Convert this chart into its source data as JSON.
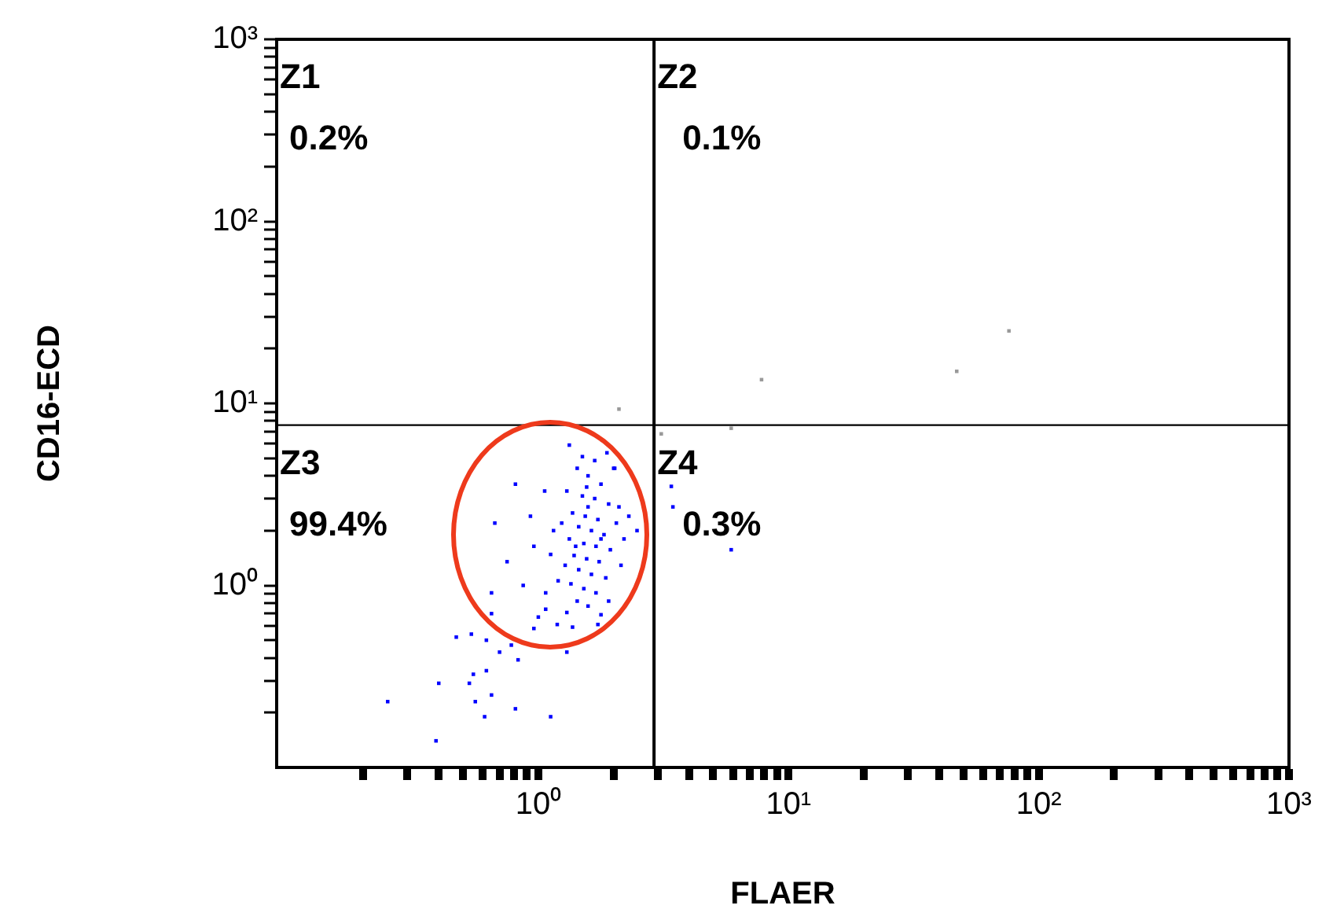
{
  "chart_data": {
    "type": "scatter",
    "xlabel": "FLAER",
    "ylabel": "CD16-ECD",
    "log": "xy",
    "marker": "square",
    "xlim": [
      0.09,
      1000
    ],
    "ylim": [
      0.1,
      1000
    ],
    "xticks": [
      {
        "value": 0.2,
        "label": null
      },
      {
        "value": 0.3,
        "label": null
      },
      {
        "value": 0.4,
        "label": null
      },
      {
        "value": 0.5,
        "label": null
      },
      {
        "value": 0.6,
        "label": null
      },
      {
        "value": 0.7,
        "label": null
      },
      {
        "value": 0.8,
        "label": null
      },
      {
        "value": 0.9,
        "label": null
      },
      {
        "value": 1,
        "label": "10⁰"
      },
      {
        "value": 2,
        "label": null
      },
      {
        "value": 3,
        "label": null
      },
      {
        "value": 4,
        "label": null
      },
      {
        "value": 5,
        "label": null
      },
      {
        "value": 6,
        "label": null
      },
      {
        "value": 7,
        "label": null
      },
      {
        "value": 8,
        "label": null
      },
      {
        "value": 9,
        "label": null
      },
      {
        "value": 10,
        "label": "10¹"
      },
      {
        "value": 20,
        "label": null
      },
      {
        "value": 30,
        "label": null
      },
      {
        "value": 40,
        "label": null
      },
      {
        "value": 50,
        "label": null
      },
      {
        "value": 60,
        "label": null
      },
      {
        "value": 70,
        "label": null
      },
      {
        "value": 80,
        "label": null
      },
      {
        "value": 90,
        "label": null
      },
      {
        "value": 100,
        "label": "10²"
      },
      {
        "value": 200,
        "label": null
      },
      {
        "value": 300,
        "label": null
      },
      {
        "value": 400,
        "label": null
      },
      {
        "value": 500,
        "label": null
      },
      {
        "value": 600,
        "label": null
      },
      {
        "value": 700,
        "label": null
      },
      {
        "value": 800,
        "label": null
      },
      {
        "value": 900,
        "label": null
      },
      {
        "value": 1000,
        "label": "10³"
      }
    ],
    "yticks": [
      {
        "value": 0.2,
        "label": null
      },
      {
        "value": 0.3,
        "label": null
      },
      {
        "value": 0.4,
        "label": null
      },
      {
        "value": 0.5,
        "label": null
      },
      {
        "value": 0.6,
        "label": null
      },
      {
        "value": 0.7,
        "label": null
      },
      {
        "value": 0.8,
        "label": null
      },
      {
        "value": 0.9,
        "label": null
      },
      {
        "value": 1,
        "label": "10⁰"
      },
      {
        "value": 2,
        "label": null
      },
      {
        "value": 3,
        "label": null
      },
      {
        "value": 4,
        "label": null
      },
      {
        "value": 5,
        "label": null
      },
      {
        "value": 6,
        "label": null
      },
      {
        "value": 7,
        "label": null
      },
      {
        "value": 8,
        "label": null
      },
      {
        "value": 9,
        "label": null
      },
      {
        "value": 10,
        "label": "10¹"
      },
      {
        "value": 20,
        "label": null
      },
      {
        "value": 30,
        "label": null
      },
      {
        "value": 40,
        "label": null
      },
      {
        "value": 50,
        "label": null
      },
      {
        "value": 60,
        "label": null
      },
      {
        "value": 70,
        "label": null
      },
      {
        "value": 80,
        "label": null
      },
      {
        "value": 90,
        "label": null
      },
      {
        "value": 100,
        "label": "10²"
      },
      {
        "value": 200,
        "label": null
      },
      {
        "value": 300,
        "label": null
      },
      {
        "value": 400,
        "label": null
      },
      {
        "value": 500,
        "label": null
      },
      {
        "value": 600,
        "label": null
      },
      {
        "value": 700,
        "label": null
      },
      {
        "value": 800,
        "label": null
      },
      {
        "value": 900,
        "label": null
      },
      {
        "value": 1000,
        "label": "10³"
      }
    ],
    "series": [
      {
        "color": "#0000ff",
        "x": [
          1.43,
          1.58,
          1.78,
          1.3,
          1.5,
          1.68,
          1.91,
          1.37,
          1.54,
          1.73,
          1.24,
          1.45,
          1.63,
          1.83,
          1.33,
          1.52,
          1.7,
          1.94,
          1.39,
          1.56,
          1.75,
          1.28,
          1.45,
          1.63,
          1.86,
          1.35,
          1.52,
          1.7,
          1.43,
          1.58,
          1.3,
          1.78,
          1.15,
          2.05,
          2.2,
          1.12,
          2.1,
          2.0,
          1.5,
          1.68,
          1.2,
          1.07,
          2.14,
          1.91,
          1.56,
          1.41,
          1.78,
          1.58,
          0.81,
          0.93,
          0.75,
          0.87,
          1.0,
          1.19,
          1.37,
          1.73,
          1.07,
          0.65,
          0.67,
          2.02,
          2.3,
          2.48,
          1.88,
          1.33,
          1.06,
          0.96,
          0.65,
          0.54,
          0.47,
          0.62,
          0.7,
          0.78,
          0.83,
          0.55,
          0.62,
          0.4,
          0.53,
          0.56,
          0.65,
          0.81,
          0.61,
          0.25,
          0.39,
          1.12,
          1.3,
          0.96,
          3.4,
          3.45,
          5.9
        ],
        "values": [
          4.4,
          4.0,
          3.6,
          3.3,
          3.1,
          3.0,
          2.8,
          2.5,
          2.4,
          2.3,
          2.2,
          2.1,
          2.0,
          1.9,
          1.8,
          1.7,
          1.64,
          1.57,
          1.46,
          1.4,
          1.35,
          1.29,
          1.22,
          1.15,
          1.1,
          1.02,
          0.96,
          0.91,
          0.82,
          0.77,
          0.71,
          0.69,
          2.0,
          2.2,
          1.8,
          1.48,
          2.7,
          4.4,
          5.1,
          4.85,
          1.06,
          0.91,
          1.29,
          0.82,
          3.47,
          1.64,
          1.8,
          2.7,
          3.6,
          2.4,
          1.35,
          1.0,
          0.67,
          0.61,
          0.59,
          0.61,
          0.74,
          0.91,
          2.2,
          4.4,
          2.4,
          2.0,
          5.35,
          5.9,
          3.3,
          1.64,
          0.7,
          0.54,
          0.52,
          0.5,
          0.43,
          0.47,
          0.39,
          0.325,
          0.34,
          0.29,
          0.29,
          0.23,
          0.25,
          0.21,
          0.19,
          0.23,
          0.14,
          0.19,
          0.43,
          0.58,
          3.5,
          2.7,
          1.57
        ]
      },
      {
        "color": "#999999",
        "x": [
          7.8,
          47,
          76,
          5.9,
          3.1,
          2.1
        ],
        "values": [
          13.5,
          15,
          25,
          7.3,
          6.8,
          9.3
        ]
      }
    ],
    "ref_lines": [
      {
        "axis": "x",
        "value": 2.9,
        "color": "#000000"
      },
      {
        "axis": "y",
        "value": 7.6,
        "color": "#000000"
      }
    ],
    "annotations": [
      "Z1",
      "0.2%",
      "Z2",
      "0.1%",
      "Z3",
      "99.4%",
      "Z4",
      "0.3%"
    ]
  }
}
